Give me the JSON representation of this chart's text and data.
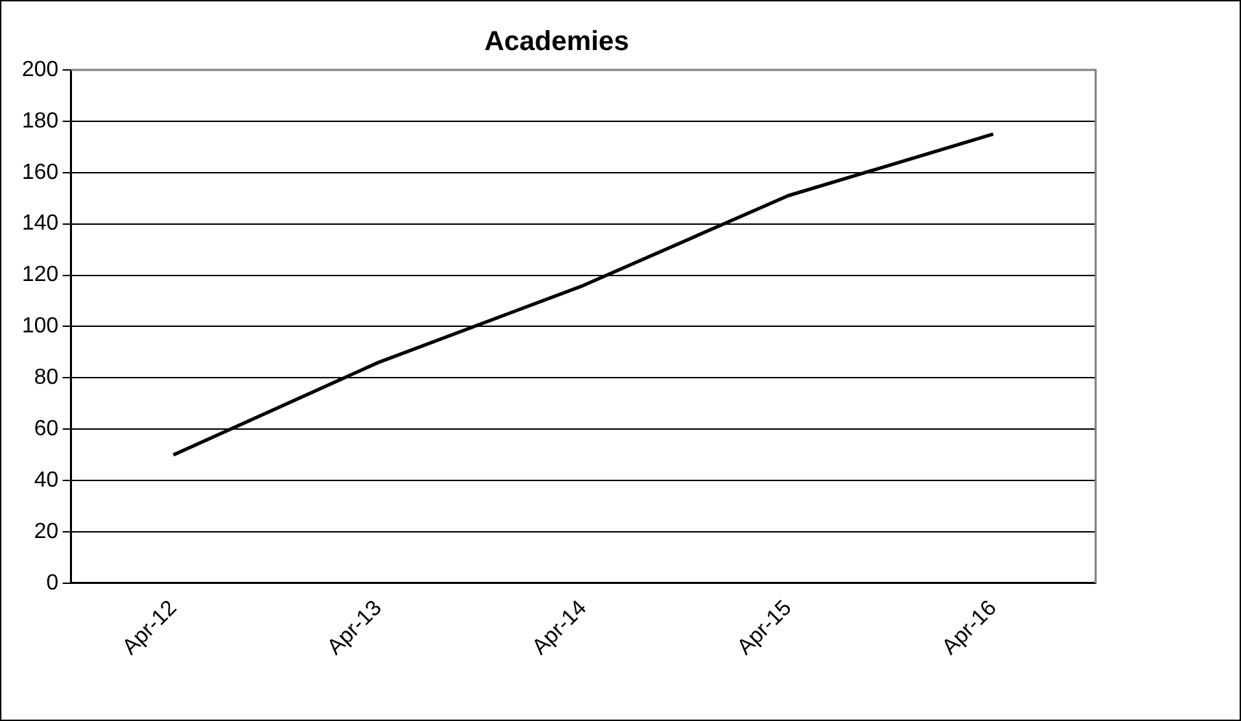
{
  "chart_data": {
    "type": "line",
    "title": "Academies",
    "categories": [
      "Apr-12",
      "Apr-13",
      "Apr-14",
      "Apr-15",
      "Apr-16"
    ],
    "series": [
      {
        "color": "#000000",
        "values": [
          50,
          86,
          116,
          151,
          175
        ]
      }
    ],
    "ylim": [
      0,
      200
    ],
    "yticks": [
      0,
      20,
      40,
      60,
      80,
      100,
      120,
      140,
      160,
      180,
      200
    ],
    "grid": "y",
    "legend": false,
    "marker": "none",
    "line_style": "solid"
  }
}
